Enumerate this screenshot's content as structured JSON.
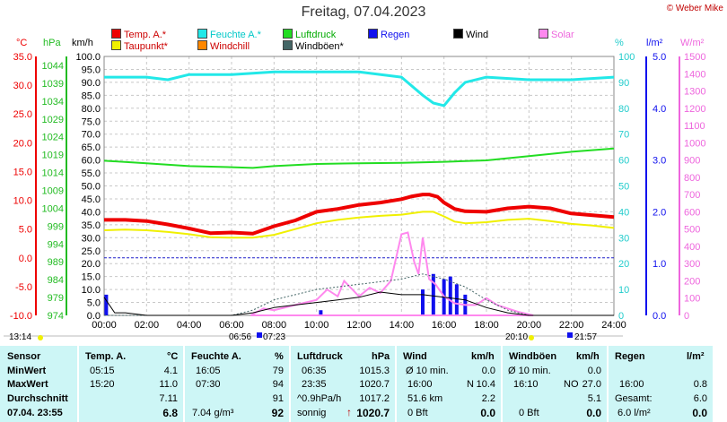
{
  "title": "Freitag, 07.04.2023",
  "copyright": "© Weber Mike",
  "legend": {
    "temp": "Temp. A.*",
    "feuchte": "Feuchte A.*",
    "luftdruck": "Luftdruck",
    "regen": "Regen",
    "wind": "Wind",
    "solar": "Solar",
    "taupunkt": "Taupunkt*",
    "windchill": "Windchill",
    "windboeen": "Windböen*"
  },
  "units": {
    "c": "°C",
    "hpa": "hPa",
    "kmh": "km/h",
    "pct": "%",
    "lm2": "l/m²",
    "wm2": "W/m²"
  },
  "colors": {
    "temp": "#ee0000",
    "feuchte": "#22e8e8",
    "luftdruck": "#22dd22",
    "regen": "#1010ee",
    "wind": "#000000",
    "solar": "#ff88ee",
    "taupunkt": "#f0f000",
    "windchill": "#ff8800",
    "windboeen": "#446666"
  },
  "time_marks": {
    "sunrise": "06:56",
    "sunset": "20:10",
    "moonrise": "07:23",
    "moonset": "21:57",
    "now": "13:14"
  },
  "chart_data": {
    "type": "line",
    "title": "Freitag, 07.04.2023",
    "x_ticks": [
      "00:00",
      "02:00",
      "04:00",
      "06:00",
      "08:00",
      "10:00",
      "12:00",
      "14:00",
      "16:00",
      "18:00",
      "20:00",
      "22:00",
      "24:00"
    ],
    "axes": {
      "temp_c": {
        "range": [
          -10,
          35
        ],
        "ticks": [
          "35.0",
          "30.0",
          "25.0",
          "20.0",
          "15.0",
          "10.0",
          "5.0",
          "0.0",
          "-5.0",
          "-10.0"
        ]
      },
      "pressure_hpa": {
        "range": [
          974,
          1046.5
        ],
        "ticks": [
          "1044",
          "1039",
          "1034",
          "1029",
          "1024",
          "1019",
          "1014",
          "1009",
          "1004",
          "999",
          "994",
          "989",
          "984",
          "979",
          "974"
        ]
      },
      "wind_kmh": {
        "range": [
          0,
          100
        ],
        "ticks": [
          "100.0",
          "95.0",
          "90.0",
          "85.0",
          "80.0",
          "75.0",
          "70.0",
          "65.0",
          "60.0",
          "55.0",
          "50.0",
          "45.0",
          "40.0",
          "35.0",
          "30.0",
          "25.0",
          "20.0",
          "15.0",
          "10.0",
          "5.0",
          "0.0"
        ]
      },
      "humidity_pct": {
        "range": [
          0,
          100
        ],
        "ticks": [
          "100",
          "90",
          "80",
          "70",
          "60",
          "50",
          "40",
          "30",
          "20",
          "10",
          "0"
        ]
      },
      "rain_lm2": {
        "range": [
          0,
          5
        ],
        "ticks": [
          "5.0",
          "4.0",
          "3.0",
          "2.0",
          "1.0",
          "0.0"
        ]
      },
      "solar_wm2": {
        "range": [
          0,
          1500
        ],
        "ticks": [
          "1500",
          "1400",
          "1300",
          "1200",
          "1100",
          "1000",
          "900",
          "800",
          "700",
          "600",
          "500",
          "400",
          "300",
          "200",
          "100",
          "0"
        ]
      }
    },
    "series": [
      {
        "name": "Temp. A.",
        "unit": "°C",
        "x": [
          0,
          1,
          2,
          3,
          4,
          5,
          6,
          7,
          8,
          9,
          10,
          11,
          12,
          13,
          14,
          14.5,
          15,
          15.3,
          15.7,
          16,
          16.5,
          17,
          18,
          19,
          20,
          21,
          22,
          23,
          24
        ],
        "y": [
          6.6,
          6.6,
          6.4,
          5.8,
          5.1,
          4.3,
          4.4,
          4.2,
          5.5,
          6.5,
          8.0,
          8.5,
          9.2,
          9.6,
          10.2,
          10.7,
          11.0,
          11.0,
          10.6,
          9.6,
          8.5,
          8.1,
          8.0,
          8.6,
          8.9,
          8.6,
          7.7,
          7.4,
          7.1
        ]
      },
      {
        "name": "Taupunkt",
        "unit": "°C",
        "x": [
          0,
          1,
          2,
          3,
          4,
          5,
          6,
          7,
          8,
          9,
          10,
          11,
          12,
          13,
          14,
          15,
          15.5,
          16,
          16.5,
          17,
          18,
          19,
          20,
          21,
          22,
          23,
          24
        ],
        "y": [
          4.8,
          4.9,
          4.8,
          4.5,
          4.1,
          3.6,
          3.5,
          3.5,
          4.0,
          5.0,
          6.0,
          6.6,
          7.0,
          7.3,
          7.5,
          8.0,
          8.0,
          7.2,
          6.3,
          6.0,
          6.2,
          6.6,
          6.8,
          6.4,
          5.9,
          5.6,
          5.2
        ]
      },
      {
        "name": "Luftdruck",
        "unit": "hPa",
        "x": [
          0,
          2,
          4,
          6,
          7,
          8,
          10,
          12,
          14,
          16,
          18,
          20,
          22,
          24
        ],
        "y": [
          1017.3,
          1016.6,
          1015.8,
          1015.5,
          1015.3,
          1015.8,
          1016.4,
          1016.6,
          1016.7,
          1017.0,
          1017.4,
          1018.6,
          1019.8,
          1020.7
        ]
      },
      {
        "name": "Feuchte A.",
        "unit": "%",
        "x": [
          0,
          2,
          3,
          4,
          6,
          8,
          10,
          12,
          14,
          15,
          15.5,
          16,
          16.5,
          17,
          18,
          20,
          22,
          24
        ],
        "y": [
          92,
          92,
          91,
          93,
          93,
          94,
          94,
          94,
          92,
          85,
          82,
          81,
          86,
          90,
          92,
          91,
          91,
          92
        ]
      },
      {
        "name": "Solar",
        "unit": "W/m²",
        "x": [
          6.9,
          7.5,
          8,
          9,
          10,
          10.5,
          11,
          11.3,
          12,
          12.5,
          13,
          13.5,
          14,
          14.3,
          14.6,
          14.8,
          15,
          15.3,
          15.6,
          16,
          16.5,
          17,
          17.5,
          18,
          18.5,
          19,
          19.5,
          20.2
        ],
        "y": [
          0,
          40,
          30,
          60,
          90,
          150,
          110,
          200,
          110,
          160,
          130,
          200,
          470,
          480,
          310,
          240,
          450,
          210,
          180,
          110,
          70,
          60,
          60,
          100,
          60,
          40,
          20,
          0
        ]
      },
      {
        "name": "Wind",
        "unit": "km/h",
        "x": [
          0,
          0.5,
          1,
          2,
          3,
          5,
          6,
          7,
          8,
          9,
          10,
          11,
          12,
          13,
          14,
          15,
          16,
          17,
          18,
          19,
          20,
          24
        ],
        "y": [
          7,
          1,
          1,
          0,
          0,
          0,
          0,
          1,
          3,
          4,
          5,
          6,
          7,
          9,
          8,
          8,
          7,
          6,
          3,
          1,
          0,
          0
        ]
      },
      {
        "name": "Windböen",
        "unit": "km/h",
        "x": [
          0,
          1,
          6,
          7,
          8,
          9,
          10,
          11,
          12,
          13,
          14,
          15,
          16,
          17,
          18,
          19,
          19.5,
          20
        ],
        "y": [
          0,
          0,
          0,
          2,
          6,
          8,
          10,
          11,
          12,
          13,
          14,
          16,
          14,
          11,
          6,
          2,
          1,
          0
        ]
      },
      {
        "name": "Regen",
        "unit": "l/m²",
        "x": [
          0.1,
          10.2,
          15.0,
          15.5,
          16.0,
          16.3,
          16.6,
          17.0
        ],
        "y": [
          0.4,
          0.1,
          0.5,
          0.8,
          0.7,
          0.75,
          0.6,
          0.4
        ]
      }
    ]
  },
  "summary": {
    "sensor": {
      "head": "Sensor",
      "rows": [
        "MinWert",
        "MaxWert",
        "Durchschnitt",
        "07.04.  23:55"
      ]
    },
    "temp": {
      "head": "Temp. A.",
      "unit": "°C",
      "rows": [
        [
          "05:15",
          "4.1"
        ],
        [
          "15:20",
          "11.0"
        ],
        [
          "",
          "7.11"
        ],
        [
          "",
          "6.8"
        ]
      ]
    },
    "feuchte": {
      "head": "Feuchte A.",
      "unit": "%",
      "rows": [
        [
          "16:05",
          "79"
        ],
        [
          "07:30",
          "94"
        ],
        [
          "",
          "91"
        ],
        [
          "7.04 g/m³",
          "92"
        ]
      ]
    },
    "luftdruck": {
      "head": "Luftdruck",
      "unit": "hPa",
      "rows": [
        [
          "06:35",
          "1015.3"
        ],
        [
          "23:35",
          "1020.7"
        ],
        [
          "^0.9hPa/h",
          "1017.2"
        ],
        [
          "sonnig",
          "1020.7"
        ]
      ]
    },
    "wind": {
      "head": "Wind",
      "unit": "km/h",
      "rows": [
        [
          "Ø 10 min.",
          "",
          "0.0"
        ],
        [
          "16:00",
          "N",
          "10.4"
        ],
        [
          "51.6 km",
          "",
          "2.2"
        ],
        [
          "0 Bft",
          "",
          "0.0"
        ]
      ]
    },
    "windboeen": {
      "head": "Windböen",
      "unit": "km/h",
      "rows": [
        [
          "Ø 10 min.",
          "",
          "0.0"
        ],
        [
          "16:10",
          "NO",
          "27.0"
        ],
        [
          "",
          "",
          "5.1"
        ],
        [
          "0 Bft",
          "",
          "0.0"
        ]
      ]
    },
    "regen": {
      "head": "Regen",
      "unit": "l/m²",
      "rows": [
        [
          "",
          ""
        ],
        [
          "16:00",
          "0.8"
        ],
        [
          "Gesamt:",
          "6.0"
        ],
        [
          "",
          "6.0 l/m²",
          "0.0"
        ]
      ]
    }
  }
}
